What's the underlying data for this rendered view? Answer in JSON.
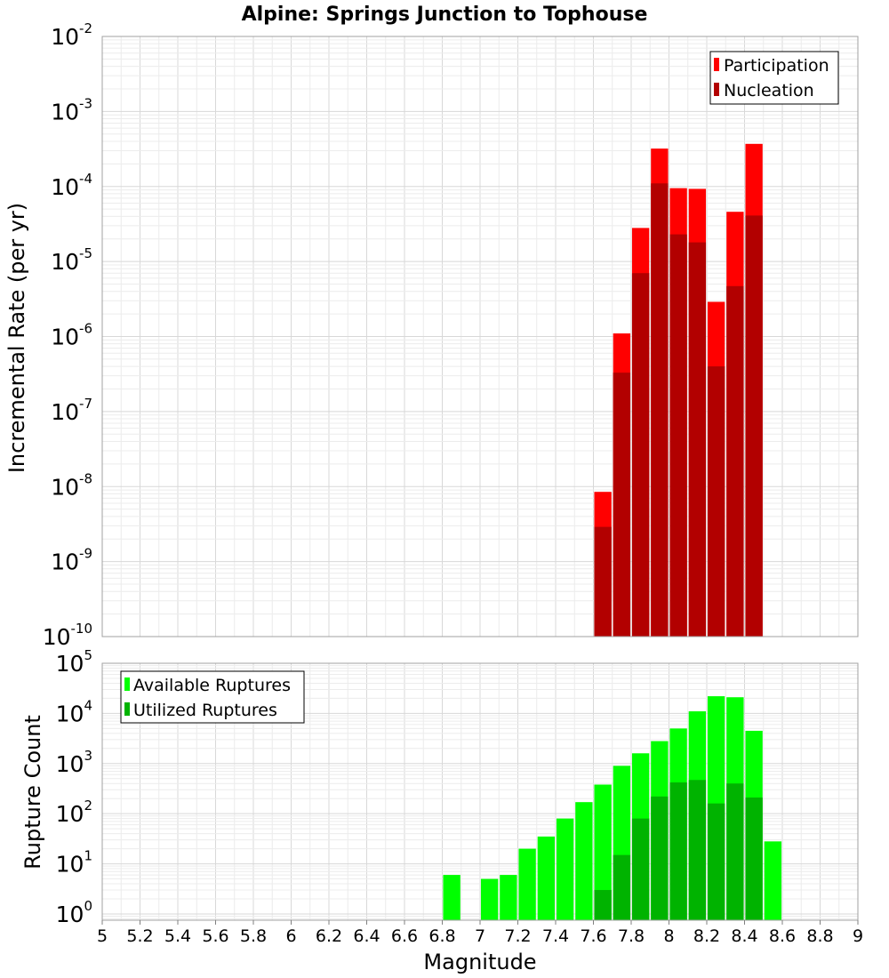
{
  "chart_data": [
    {
      "type": "bar",
      "title": "Alpine: Springs Junction to Tophouse",
      "ylabel": "Incremental Rate (per yr)",
      "xlabel": "",
      "yscale": "log",
      "ylim": [
        1e-10,
        0.01
      ],
      "xlim": [
        5,
        9
      ],
      "grid": true,
      "legend_position": "top-right",
      "x": [
        7.65,
        7.75,
        7.85,
        7.95,
        8.05,
        8.15,
        8.25,
        8.35,
        8.45
      ],
      "series": [
        {
          "name": "Participation",
          "color": "#ff0000",
          "values": [
            8.5e-09,
            1.1e-06,
            2.8e-05,
            0.00032,
            9.5e-05,
            9.3e-05,
            2.9e-06,
            4.6e-05,
            0.00037
          ]
        },
        {
          "name": "Nucleation",
          "color": "#b20000",
          "values": [
            2.9e-09,
            3.3e-07,
            7e-06,
            0.00011,
            2.3e-05,
            1.8e-05,
            4e-07,
            4.7e-06,
            4.1e-05
          ]
        }
      ]
    },
    {
      "type": "bar",
      "title": "",
      "ylabel": "Rupture Count",
      "xlabel": "Magnitude",
      "yscale": "log",
      "ylim": [
        0.75,
        100000
      ],
      "xlim": [
        5,
        9
      ],
      "grid": true,
      "legend_position": "top-left",
      "x": [
        6.85,
        6.95,
        7.05,
        7.15,
        7.25,
        7.35,
        7.45,
        7.55,
        7.65,
        7.75,
        7.85,
        7.95,
        8.05,
        8.15,
        8.25,
        8.35,
        8.45,
        8.55
      ],
      "series": [
        {
          "name": "Available Ruptures",
          "color": "#00ff00",
          "values": [
            6,
            0,
            5,
            6,
            20,
            35,
            80,
            170,
            380,
            900,
            1600,
            2800,
            5000,
            11000,
            22000,
            21000,
            4500,
            28
          ]
        },
        {
          "name": "Utilized Ruptures",
          "color": "#00b300",
          "values": [
            0,
            0,
            0,
            0,
            0,
            0,
            0,
            0,
            3,
            15,
            80,
            220,
            420,
            470,
            160,
            400,
            210,
            0
          ]
        }
      ]
    }
  ],
  "axes": {
    "top_y_ticks": [
      {
        "base": "10",
        "exp": "-10"
      },
      {
        "base": "10",
        "exp": "-9"
      },
      {
        "base": "10",
        "exp": "-8"
      },
      {
        "base": "10",
        "exp": "-7"
      },
      {
        "base": "10",
        "exp": "-6"
      },
      {
        "base": "10",
        "exp": "-5"
      },
      {
        "base": "10",
        "exp": "-4"
      },
      {
        "base": "10",
        "exp": "-3"
      },
      {
        "base": "10",
        "exp": "-2"
      }
    ],
    "bottom_y_ticks": [
      {
        "base": "10",
        "exp": "0"
      },
      {
        "base": "10",
        "exp": "1"
      },
      {
        "base": "10",
        "exp": "2"
      },
      {
        "base": "10",
        "exp": "3"
      },
      {
        "base": "10",
        "exp": "4"
      },
      {
        "base": "10",
        "exp": "5"
      }
    ],
    "x_ticks": [
      "5",
      "5.2",
      "5.4",
      "5.6",
      "5.8",
      "6",
      "6.2",
      "6.4",
      "6.6",
      "6.8",
      "7",
      "7.2",
      "7.4",
      "7.6",
      "7.8",
      "8",
      "8.2",
      "8.4",
      "8.6",
      "8.8",
      "9"
    ]
  }
}
